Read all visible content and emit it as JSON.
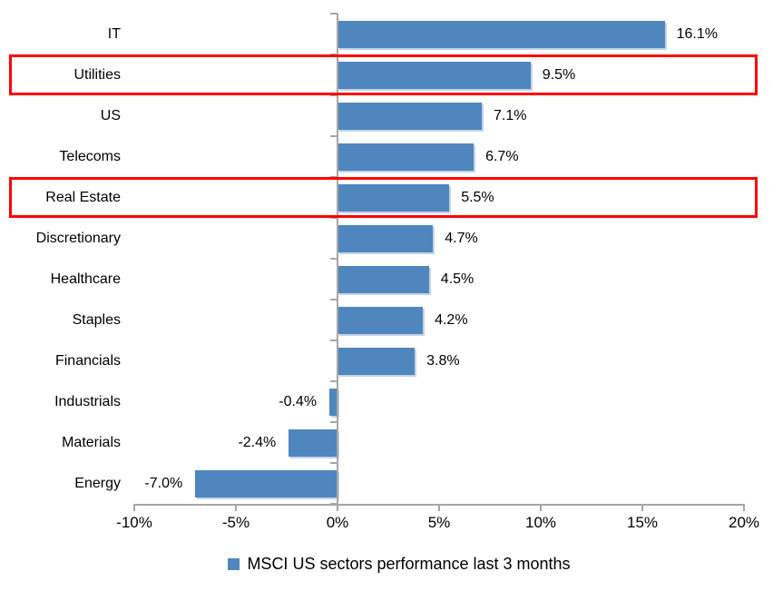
{
  "chart_data": {
    "type": "bar",
    "orientation": "horizontal",
    "title": "",
    "xlabel": "",
    "ylabel": "",
    "categories": [
      "IT",
      "Utilities",
      "US",
      "Telecoms",
      "Real Estate",
      "Discretionary",
      "Healthcare",
      "Staples",
      "Financials",
      "Industrials",
      "Materials",
      "Energy"
    ],
    "values": [
      16.1,
      9.5,
      7.1,
      6.7,
      5.5,
      4.7,
      4.5,
      4.2,
      3.8,
      -0.4,
      -2.4,
      -7.0
    ],
    "value_labels": [
      "16.1%",
      "9.5%",
      "7.1%",
      "6.7%",
      "5.5%",
      "4.7%",
      "4.5%",
      "4.2%",
      "3.8%",
      "-0.4%",
      "-2.4%",
      "-7.0%"
    ],
    "x_tick_labels": [
      "-10%",
      "-5%",
      "0%",
      "5%",
      "10%",
      "15%",
      "20%"
    ],
    "x_tick_values": [
      -10,
      -5,
      0,
      5,
      10,
      15,
      20
    ],
    "xlim": [
      -10,
      20
    ],
    "grid": false,
    "legend_position": "bottom",
    "legend": "MSCI US sectors performance last 3 months",
    "bar_color": "#4F86BD",
    "highlight_color": "#FF0000",
    "highlighted_categories": [
      "Utilities",
      "Real Estate"
    ]
  }
}
